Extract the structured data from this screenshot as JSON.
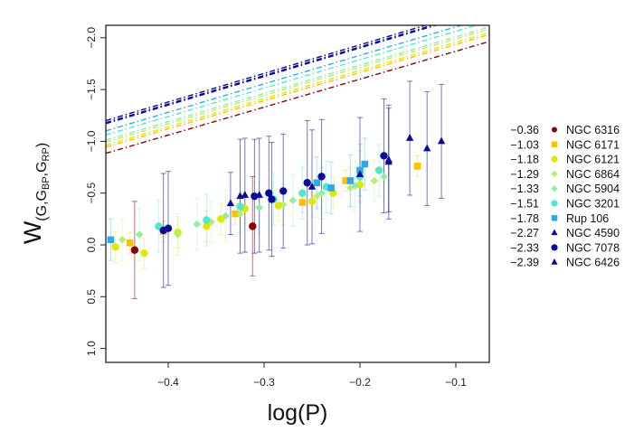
{
  "chart_data": {
    "type": "scatter",
    "title": "",
    "xlabel": "log(P)",
    "ylabel": "W(G,GBP,GRP)",
    "ylabel_parts": {
      "main": "W",
      "sub": "(G,G",
      "sub_bp": "BP",
      "sub_mid": ",G",
      "sub_rp": "RP",
      "sub_end": ")"
    },
    "xlim": [
      -0.465,
      -0.065
    ],
    "ylim": [
      1.12,
      -2.12
    ],
    "y_inverted": true,
    "grid": false,
    "x_ticks": [
      -0.4,
      -0.3,
      -0.2,
      -0.1
    ],
    "x_tick_labels": [
      "−0.4",
      "−0.3",
      "−0.2",
      "−0.1"
    ],
    "y_ticks": [
      -2.0,
      -1.5,
      -1.0,
      -0.5,
      0.0,
      0.5,
      1.0
    ],
    "y_tick_labels": [
      "−2.0",
      "−1.5",
      "−1.0",
      "−0.5",
      "0.0",
      "0.5",
      "1.0"
    ],
    "legend_position": "right-outside",
    "series": [
      {
        "name": "NGC 6316",
        "metallicity": "−0.36",
        "color": "#8b0000",
        "marker": "circle",
        "fit": {
          "intercept": -1.06,
          "slope": -2.7
        },
        "points": [
          [
            -0.435,
            0.05,
            0.47
          ],
          [
            -0.312,
            -0.18,
            0.48
          ]
        ]
      },
      {
        "name": "NGC 6171",
        "metallicity": "−1.03",
        "color": "#ffc000",
        "marker": "square",
        "fit": {
          "intercept": -1.12,
          "slope": -2.72
        },
        "points": [
          [
            -0.44,
            -0.02,
            0.1
          ],
          [
            -0.405,
            -0.13,
            0.1
          ],
          [
            -0.33,
            -0.3,
            0.1
          ],
          [
            -0.26,
            -0.41,
            0.1
          ],
          [
            -0.215,
            -0.62,
            0.1
          ],
          [
            -0.14,
            -0.76,
            0.1
          ]
        ]
      },
      {
        "name": "NGC 6121",
        "metallicity": "−1.18",
        "color": "#e0e800",
        "marker": "circle",
        "fit": {
          "intercept": -1.14,
          "slope": -2.72
        },
        "points": [
          [
            -0.455,
            0.02,
            0.15
          ],
          [
            -0.425,
            0.08,
            0.15
          ],
          [
            -0.39,
            -0.12,
            0.15
          ],
          [
            -0.36,
            -0.18,
            0.15
          ],
          [
            -0.345,
            -0.25,
            0.15
          ],
          [
            -0.32,
            -0.35,
            0.15
          ],
          [
            -0.285,
            -0.38,
            0.15
          ],
          [
            -0.25,
            -0.42,
            0.15
          ],
          [
            -0.228,
            -0.5,
            0.15
          ],
          [
            -0.2,
            -0.58,
            0.15
          ]
        ]
      },
      {
        "name": "NGC 6864",
        "metallicity": "−1.29",
        "color": "#b4f070",
        "marker": "diamond",
        "fit": {
          "intercept": -1.17,
          "slope": -2.73
        },
        "points": [
          [
            -0.448,
            -0.05,
            0.2
          ],
          [
            -0.39,
            -0.1,
            0.2
          ],
          [
            -0.355,
            -0.22,
            0.2
          ],
          [
            -0.325,
            -0.3,
            0.2
          ],
          [
            -0.28,
            -0.39,
            0.2
          ],
          [
            -0.245,
            -0.47,
            0.2
          ],
          [
            -0.21,
            -0.55,
            0.2
          ],
          [
            -0.185,
            -0.62,
            0.2
          ]
        ]
      },
      {
        "name": "NGC 5904",
        "metallicity": "−1.33",
        "color": "#90eea0",
        "marker": "diamond",
        "fit": {
          "intercept": -1.19,
          "slope": -2.73
        },
        "points": [
          [
            -0.43,
            -0.1,
            0.25
          ],
          [
            -0.37,
            -0.2,
            0.25
          ],
          [
            -0.34,
            -0.28,
            0.25
          ],
          [
            -0.305,
            -0.36,
            0.25
          ],
          [
            -0.27,
            -0.43,
            0.25
          ],
          [
            -0.24,
            -0.5,
            0.25
          ],
          [
            -0.205,
            -0.57,
            0.25
          ],
          [
            -0.175,
            -0.66,
            0.25
          ]
        ]
      },
      {
        "name": "NGC 3201",
        "metallicity": "−1.51",
        "color": "#50e8c8",
        "marker": "circle",
        "fit": {
          "intercept": -1.24,
          "slope": -2.74
        },
        "points": [
          [
            -0.41,
            -0.18,
            0.25
          ],
          [
            -0.36,
            -0.24,
            0.25
          ],
          [
            -0.325,
            -0.37,
            0.25
          ],
          [
            -0.29,
            -0.44,
            0.25
          ],
          [
            -0.26,
            -0.5,
            0.25
          ],
          [
            -0.235,
            -0.56,
            0.25
          ],
          [
            -0.2,
            -0.66,
            0.25
          ],
          [
            -0.18,
            -0.72,
            0.25
          ]
        ]
      },
      {
        "name": "Rup 106",
        "metallicity": "−1.78",
        "color": "#30a8e8",
        "marker": "square",
        "fit": {
          "intercept": -1.28,
          "slope": -2.75
        },
        "points": [
          [
            -0.46,
            -0.05,
            0.2
          ],
          [
            -0.245,
            -0.6,
            0.25
          ],
          [
            -0.23,
            -0.55,
            0.25
          ],
          [
            -0.21,
            -0.62,
            0.25
          ],
          [
            -0.2,
            -0.72,
            0.25
          ],
          [
            -0.195,
            -0.78,
            0.25
          ]
        ]
      },
      {
        "name": "NGC 4590",
        "metallicity": "−2.27",
        "color": "#0a0aa0",
        "marker": "triangle",
        "fit": {
          "intercept": -1.35,
          "slope": -2.76
        },
        "points": [
          [
            -0.335,
            -0.4,
            0.3
          ],
          [
            -0.325,
            -0.47,
            0.55
          ],
          [
            -0.305,
            -0.48,
            0.55
          ],
          [
            -0.2,
            -0.68,
            0.55
          ],
          [
            -0.17,
            -0.8,
            0.55
          ],
          [
            -0.148,
            -1.03,
            0.55
          ],
          [
            -0.13,
            -0.93,
            0.55
          ]
        ]
      },
      {
        "name": "NGC 7078",
        "metallicity": "−2.33",
        "color": "#0a0a96",
        "marker": "circle",
        "fit": {
          "intercept": -1.36,
          "slope": -2.76
        },
        "points": [
          [
            -0.405,
            -0.14,
            0.55
          ],
          [
            -0.4,
            -0.16,
            0.55
          ],
          [
            -0.31,
            -0.47,
            0.55
          ],
          [
            -0.295,
            -0.5,
            0.55
          ],
          [
            -0.292,
            -0.44,
            0.55
          ],
          [
            -0.28,
            -0.52,
            0.55
          ],
          [
            -0.255,
            -0.6,
            0.6
          ],
          [
            -0.24,
            -0.66,
            0.55
          ],
          [
            -0.175,
            -0.86,
            0.55
          ]
        ]
      },
      {
        "name": "NGC 6426",
        "metallicity": "−2.39",
        "color": "#0a0a8c",
        "marker": "triangle",
        "fit": {
          "intercept": -1.38,
          "slope": -2.76
        },
        "points": [
          [
            -0.32,
            -0.48,
            0.55
          ],
          [
            -0.25,
            -0.56,
            0.55
          ],
          [
            -0.17,
            -0.82,
            0.5
          ],
          [
            -0.115,
            -1.0,
            0.55
          ]
        ]
      }
    ]
  }
}
